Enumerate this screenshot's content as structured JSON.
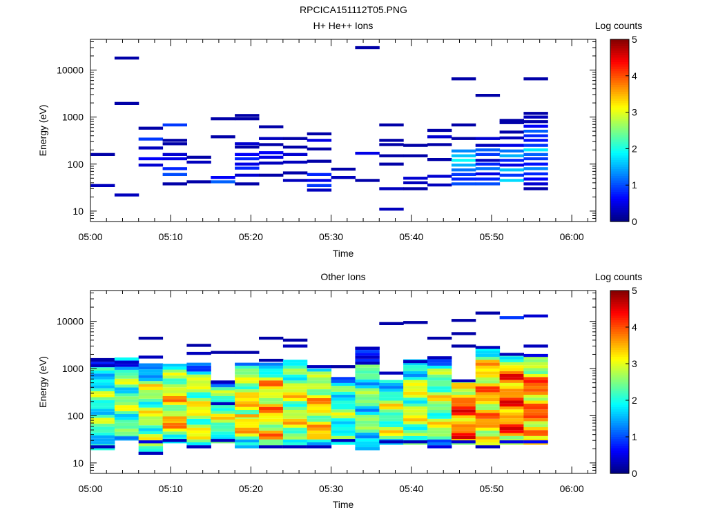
{
  "figure_title": "RPCICA151112T05.PNG",
  "colorbar": {
    "label": "Log counts",
    "ticks": [
      "0",
      "1",
      "2",
      "3",
      "4",
      "5"
    ],
    "min": 0,
    "max": 5
  },
  "chart_data": [
    {
      "type": "heatmap",
      "title": "H+ He++ Ions",
      "xlabel": "Time",
      "ylabel": "Energy (eV)",
      "y_scale": "log",
      "ylim": [
        6,
        45000
      ],
      "xlim": [
        "05:00",
        "06:03"
      ],
      "x_ticks": [
        "05:00",
        "05:10",
        "05:20",
        "05:30",
        "05:40",
        "05:50",
        "06:00"
      ],
      "y_ticks": [
        "10",
        "100",
        "1000",
        "10000"
      ],
      "colorbar_label": "Log counts",
      "time_bins": [
        "05:00",
        "05:03",
        "05:06",
        "05:09",
        "05:12",
        "05:15",
        "05:18",
        "05:21",
        "05:24",
        "05:27",
        "05:30",
        "05:33",
        "05:36",
        "05:39",
        "05:42",
        "05:45",
        "05:48",
        "05:51",
        "05:54",
        "05:57",
        "06:00"
      ],
      "cells": [
        [
          0,
          160,
          0.2
        ],
        [
          0,
          35,
          0.3
        ],
        [
          1,
          18000,
          0.2
        ],
        [
          1,
          1950,
          0.2
        ],
        [
          1,
          22,
          0.3
        ],
        [
          2,
          580,
          0.2
        ],
        [
          2,
          340,
          0.9
        ],
        [
          2,
          220,
          0.3
        ],
        [
          2,
          130,
          0.6
        ],
        [
          2,
          95,
          0.4
        ],
        [
          3,
          680,
          0.9
        ],
        [
          3,
          320,
          0.2
        ],
        [
          3,
          270,
          0.2
        ],
        [
          3,
          160,
          0.4
        ],
        [
          3,
          130,
          0.5
        ],
        [
          3,
          80,
          0.8
        ],
        [
          3,
          60,
          1.0
        ],
        [
          3,
          38,
          0.2
        ],
        [
          4,
          140,
          0.2
        ],
        [
          4,
          110,
          0.3
        ],
        [
          4,
          42,
          0.2
        ],
        [
          5,
          920,
          0.2
        ],
        [
          5,
          380,
          0.2
        ],
        [
          5,
          52,
          0.6
        ],
        [
          5,
          42,
          1.1
        ],
        [
          6,
          1080,
          0.2
        ],
        [
          6,
          920,
          0.2
        ],
        [
          6,
          270,
          0.4
        ],
        [
          6,
          230,
          0.2
        ],
        [
          6,
          160,
          0.6
        ],
        [
          6,
          130,
          0.8
        ],
        [
          6,
          100,
          0.5
        ],
        [
          6,
          82,
          0.8
        ],
        [
          6,
          58,
          0.4
        ],
        [
          6,
          38,
          0.2
        ],
        [
          7,
          620,
          0.2
        ],
        [
          7,
          350,
          0.3
        ],
        [
          7,
          260,
          0.2
        ],
        [
          7,
          175,
          0.6
        ],
        [
          7,
          140,
          0.5
        ],
        [
          7,
          105,
          0.3
        ],
        [
          7,
          58,
          0.2
        ],
        [
          8,
          350,
          0.2
        ],
        [
          8,
          230,
          0.2
        ],
        [
          8,
          160,
          0.4
        ],
        [
          8,
          110,
          0.3
        ],
        [
          8,
          65,
          0.2
        ],
        [
          8,
          45,
          0.3
        ],
        [
          9,
          440,
          0.2
        ],
        [
          9,
          320,
          0.5
        ],
        [
          9,
          210,
          0.2
        ],
        [
          9,
          115,
          0.2
        ],
        [
          9,
          60,
          0.8
        ],
        [
          9,
          45,
          0.5
        ],
        [
          9,
          35,
          0.9
        ],
        [
          9,
          28,
          0.3
        ],
        [
          10,
          78,
          0.2
        ],
        [
          10,
          52,
          0.3
        ],
        [
          11,
          30000,
          0.2
        ],
        [
          11,
          170,
          0.5
        ],
        [
          11,
          45,
          0.2
        ],
        [
          12,
          680,
          0.2
        ],
        [
          12,
          320,
          0.2
        ],
        [
          12,
          260,
          0.2
        ],
        [
          12,
          150,
          0.2
        ],
        [
          12,
          100,
          0.2
        ],
        [
          12,
          30,
          0.3
        ],
        [
          12,
          11,
          0.3
        ],
        [
          13,
          250,
          0.2
        ],
        [
          13,
          150,
          0.2
        ],
        [
          13,
          50,
          0.4
        ],
        [
          13,
          40,
          0.3
        ],
        [
          13,
          30,
          0.2
        ],
        [
          14,
          520,
          0.2
        ],
        [
          14,
          380,
          0.4
        ],
        [
          14,
          260,
          0.2
        ],
        [
          14,
          125,
          0.2
        ],
        [
          14,
          55,
          0.4
        ],
        [
          14,
          36,
          0.3
        ],
        [
          15,
          6500,
          0.2
        ],
        [
          15,
          680,
          0.2
        ],
        [
          15,
          350,
          0.2
        ],
        [
          15,
          190,
          1.3
        ],
        [
          15,
          150,
          1.6
        ],
        [
          15,
          120,
          1.9
        ],
        [
          15,
          95,
          1.5
        ],
        [
          15,
          75,
          1.2
        ],
        [
          15,
          60,
          0.9
        ],
        [
          15,
          48,
          0.8
        ],
        [
          15,
          38,
          1.0
        ],
        [
          16,
          2900,
          0.2
        ],
        [
          16,
          350,
          0.4
        ],
        [
          16,
          250,
          0.3
        ],
        [
          16,
          200,
          1.1
        ],
        [
          16,
          160,
          0.9
        ],
        [
          16,
          120,
          0.3
        ],
        [
          16,
          100,
          0.8
        ],
        [
          16,
          80,
          1.2
        ],
        [
          16,
          62,
          0.5
        ],
        [
          16,
          48,
          0.8
        ],
        [
          16,
          38,
          1.0
        ],
        [
          17,
          850,
          0.2
        ],
        [
          17,
          760,
          0.2
        ],
        [
          17,
          480,
          0.2
        ],
        [
          17,
          360,
          0.3
        ],
        [
          17,
          250,
          0.5
        ],
        [
          17,
          190,
          1.2
        ],
        [
          17,
          150,
          1.5
        ],
        [
          17,
          120,
          0.8
        ],
        [
          17,
          95,
          0.5
        ],
        [
          17,
          75,
          1.6
        ],
        [
          17,
          58,
          0.9
        ],
        [
          17,
          45,
          1.7
        ],
        [
          18,
          6500,
          0.2
        ],
        [
          18,
          1200,
          0.2
        ],
        [
          18,
          1000,
          0.3
        ],
        [
          18,
          800,
          0.2
        ],
        [
          18,
          640,
          0.6
        ],
        [
          18,
          500,
          1.1
        ],
        [
          18,
          400,
          0.8
        ],
        [
          18,
          320,
          0.7
        ],
        [
          18,
          250,
          0.9
        ],
        [
          18,
          200,
          1.8
        ],
        [
          18,
          160,
          1.1
        ],
        [
          18,
          130,
          0.9
        ],
        [
          18,
          100,
          0.7
        ],
        [
          18,
          80,
          1.3
        ],
        [
          18,
          62,
          0.8
        ],
        [
          18,
          48,
          0.6
        ],
        [
          18,
          38,
          0.4
        ],
        [
          18,
          30,
          0.2
        ]
      ]
    },
    {
      "type": "heatmap",
      "title": "Other Ions",
      "xlabel": "Time",
      "ylabel": "Energy (eV)",
      "y_scale": "log",
      "ylim": [
        6,
        45000
      ],
      "xlim": [
        "05:00",
        "06:03"
      ],
      "x_ticks": [
        "05:00",
        "05:10",
        "05:20",
        "05:30",
        "05:40",
        "05:50",
        "06:00"
      ],
      "y_ticks": [
        "10",
        "100",
        "1000",
        "10000"
      ],
      "colorbar_label": "Log counts",
      "time_bins": [
        "05:00",
        "05:03",
        "05:06",
        "05:09",
        "05:12",
        "05:15",
        "05:18",
        "05:21",
        "05:24",
        "05:27",
        "05:30",
        "05:33",
        "05:36",
        "05:39",
        "05:42",
        "05:45",
        "05:48",
        "05:51",
        "05:54",
        "05:57",
        "06:00"
      ],
      "columns": [
        {
          "top": 1500,
          "bottom": 20,
          "base": 2.2,
          "extra": [
            [
              1550,
              0.2
            ],
            [
              1150,
              0.3
            ],
            [
              22,
              0.3
            ]
          ]
        },
        {
          "top": 1600,
          "bottom": 32,
          "base": 2.4,
          "extra": [
            [
              1600,
              1.9
            ],
            [
              34,
              1.2
            ]
          ]
        },
        {
          "top": 1300,
          "bottom": 16,
          "base": 2.6,
          "extra": [
            [
              4400,
              0.2
            ],
            [
              1750,
              0.3
            ],
            [
              16,
              0.3
            ],
            [
              28,
              0.5
            ]
          ]
        },
        {
          "top": 1250,
          "bottom": 28,
          "base": 3.0,
          "extra": [
            [
              90,
              3.6
            ],
            [
              80,
              3.5
            ],
            [
              30,
              0.3
            ]
          ]
        },
        {
          "top": 1250,
          "bottom": 22,
          "base": 2.8,
          "extra": [
            [
              3100,
              0.2
            ],
            [
              2100,
              0.3
            ],
            [
              22,
              0.3
            ]
          ]
        },
        {
          "top": 520,
          "bottom": 28,
          "base": 2.5,
          "extra": [
            [
              2200,
              0.2
            ],
            [
              520,
              0.3
            ],
            [
              180,
              0.3
            ],
            [
              30,
              0.3
            ]
          ]
        },
        {
          "top": 1300,
          "bottom": 22,
          "base": 3.0,
          "extra": [
            [
              2200,
              0.2
            ],
            [
              100,
              3.6
            ],
            [
              22,
              1.5
            ]
          ]
        },
        {
          "top": 1250,
          "bottom": 22,
          "base": 3.2,
          "extra": [
            [
              4400,
              0.2
            ],
            [
              1500,
              0.2
            ],
            [
              22,
              0.3
            ]
          ]
        },
        {
          "top": 1600,
          "bottom": 22,
          "base": 2.8,
          "extra": [
            [
              4000,
              0.2
            ],
            [
              3000,
              0.3
            ],
            [
              22,
              0.3
            ]
          ]
        },
        {
          "top": 1000,
          "bottom": 22,
          "base": 3.1,
          "extra": [
            [
              1100,
              0.3
            ],
            [
              22,
              0.3
            ]
          ]
        },
        {
          "top": 700,
          "bottom": 26,
          "base": 2.2,
          "extra": [
            [
              1100,
              0.2
            ],
            [
              30,
              0.3
            ]
          ]
        },
        {
          "top": 2700,
          "bottom": 20,
          "base": 2.2,
          "extra": [
            [
              2700,
              0.3
            ],
            [
              1300,
              0.3
            ],
            [
              20,
              1.5
            ]
          ]
        },
        {
          "top": 600,
          "bottom": 26,
          "base": 2.5,
          "extra": [
            [
              9000,
              0.2
            ],
            [
              800,
              0.3
            ],
            [
              28,
              0.3
            ]
          ]
        },
        {
          "top": 1500,
          "bottom": 26,
          "base": 2.7,
          "extra": [
            [
              9500,
              0.2
            ],
            [
              1400,
              0.3
            ],
            [
              28,
              0.3
            ]
          ]
        },
        {
          "top": 1700,
          "bottom": 22,
          "base": 2.6,
          "extra": [
            [
              4400,
              0.2
            ],
            [
              1700,
              0.3
            ],
            [
              22,
              0.5
            ]
          ]
        },
        {
          "top": 550,
          "bottom": 26,
          "base": 3.8,
          "extra": [
            [
              10500,
              0.2
            ],
            [
              5500,
              0.2
            ],
            [
              3000,
              0.2
            ],
            [
              550,
              0.3
            ],
            [
              28,
              0.4
            ]
          ]
        },
        {
          "top": 2800,
          "bottom": 22,
          "base": 3.4,
          "extra": [
            [
              15000,
              0.2
            ],
            [
              2800,
              0.3
            ],
            [
              22,
              0.3
            ]
          ]
        },
        {
          "top": 2000,
          "bottom": 26,
          "base": 3.8,
          "extra": [
            [
              12000,
              0.9
            ],
            [
              2000,
              0.3
            ],
            [
              28,
              0.5
            ]
          ]
        },
        {
          "top": 1900,
          "bottom": 26,
          "base": 3.6,
          "extra": [
            [
              13000,
              0.4
            ],
            [
              3000,
              0.3
            ],
            [
              1900,
              0.5
            ],
            [
              28,
              0.6
            ]
          ]
        }
      ]
    }
  ]
}
